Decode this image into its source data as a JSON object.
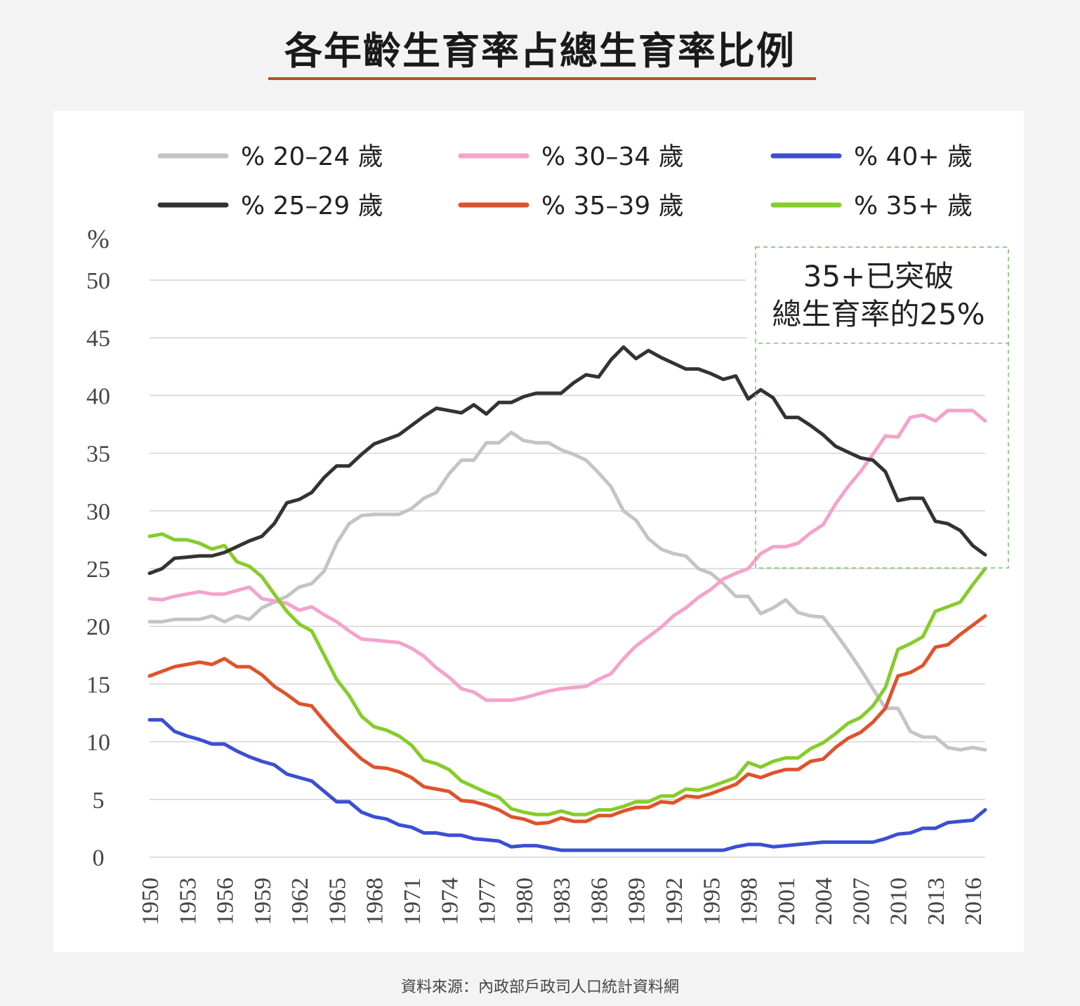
{
  "title": "各年齡生育率占總生育率比例",
  "source": "資料來源：內政部戶政司人口統計資料網",
  "annotation": {
    "line1": "35+已突破",
    "line2": "總生育率的25%"
  },
  "chart_data": {
    "type": "line",
    "title": "各年齡生育率占總生育率比例",
    "ylabel": "%",
    "ylim": [
      0,
      50
    ],
    "yticks": [
      0,
      5,
      10,
      15,
      20,
      25,
      30,
      35,
      40,
      45,
      50
    ],
    "xtick_labels": [
      "1950",
      "1953",
      "1956",
      "1959",
      "1962",
      "1965",
      "1968",
      "1971",
      "1974",
      "1977",
      "1980",
      "1983",
      "1986",
      "1989",
      "1992",
      "1995",
      "1998",
      "2001",
      "2004",
      "2007",
      "2010",
      "2013",
      "2016"
    ],
    "x": [
      1950,
      1951,
      1952,
      1953,
      1954,
      1955,
      1956,
      1957,
      1958,
      1959,
      1960,
      1961,
      1962,
      1963,
      1964,
      1965,
      1966,
      1967,
      1968,
      1969,
      1970,
      1971,
      1972,
      1973,
      1974,
      1975,
      1976,
      1977,
      1978,
      1979,
      1980,
      1981,
      1982,
      1983,
      1984,
      1985,
      1986,
      1987,
      1988,
      1989,
      1990,
      1991,
      1992,
      1993,
      1994,
      1995,
      1996,
      1997,
      1998,
      1999,
      2000,
      2001,
      2002,
      2003,
      2004,
      2005,
      2006,
      2007,
      2008,
      2009,
      2010,
      2011,
      2012,
      2013,
      2014,
      2015,
      2016,
      2017
    ],
    "grid": true,
    "legend_position": "top",
    "series": [
      {
        "name": "% 20–24 歲",
        "color": "#c4c4c4",
        "values": [
          20.4,
          20.4,
          20.6,
          20.6,
          20.6,
          20.9,
          20.4,
          20.9,
          20.6,
          21.6,
          22.1,
          22.6,
          23.4,
          23.7,
          24.8,
          27.2,
          28.9,
          29.6,
          29.7,
          29.7,
          29.7,
          30.2,
          31.1,
          31.6,
          33.2,
          34.4,
          34.4,
          35.9,
          35.9,
          36.8,
          36.1,
          35.9,
          35.9,
          35.3,
          34.9,
          34.4,
          33.3,
          32.1,
          30.0,
          29.2,
          27.6,
          26.7,
          26.3,
          26.1,
          25.0,
          24.6,
          23.7,
          22.6,
          22.6,
          21.1,
          21.6,
          22.3,
          21.2,
          20.9,
          20.8,
          19.4,
          17.9,
          16.3,
          14.6,
          12.9,
          12.9,
          10.9,
          10.4,
          10.4,
          9.5,
          9.3,
          9.5,
          9.3
        ]
      },
      {
        "name": "% 25–29 歲",
        "color": "#333333",
        "values": [
          24.6,
          25.0,
          25.9,
          26.0,
          26.1,
          26.1,
          26.4,
          26.9,
          27.4,
          27.8,
          28.9,
          30.7,
          31.0,
          31.6,
          32.9,
          33.9,
          33.9,
          34.9,
          35.8,
          36.2,
          36.6,
          37.4,
          38.2,
          38.9,
          38.7,
          38.5,
          39.2,
          38.4,
          39.4,
          39.4,
          39.9,
          40.2,
          40.2,
          40.2,
          41.1,
          41.8,
          41.6,
          43.1,
          44.2,
          43.2,
          43.9,
          43.3,
          42.8,
          42.3,
          42.3,
          41.9,
          41.4,
          41.7,
          39.7,
          40.5,
          39.8,
          38.1,
          38.1,
          37.4,
          36.6,
          35.6,
          35.1,
          34.6,
          34.4,
          33.4,
          30.9,
          31.1,
          31.1,
          29.1,
          28.9,
          28.3,
          27.0,
          26.2
        ]
      },
      {
        "name": "% 30–34 歲",
        "color": "#f4a3cd",
        "values": [
          22.4,
          22.3,
          22.6,
          22.8,
          23.0,
          22.8,
          22.8,
          23.1,
          23.4,
          22.4,
          22.2,
          22.0,
          21.4,
          21.7,
          21.0,
          20.4,
          19.6,
          18.9,
          18.8,
          18.7,
          18.6,
          18.1,
          17.4,
          16.4,
          15.6,
          14.6,
          14.3,
          13.6,
          13.6,
          13.6,
          13.8,
          14.1,
          14.4,
          14.6,
          14.7,
          14.8,
          15.4,
          15.9,
          17.2,
          18.3,
          19.1,
          19.9,
          20.9,
          21.6,
          22.5,
          23.2,
          24.1,
          24.6,
          25.0,
          26.3,
          26.9,
          26.9,
          27.2,
          28.1,
          28.8,
          30.6,
          32.1,
          33.4,
          34.9,
          36.5,
          36.4,
          38.1,
          38.3,
          37.8,
          38.7,
          38.7,
          38.7,
          37.8
        ]
      },
      {
        "name": "% 35–39 歲",
        "color": "#e0522b",
        "values": [
          15.7,
          16.1,
          16.5,
          16.7,
          16.9,
          16.7,
          17.2,
          16.5,
          16.5,
          15.8,
          14.8,
          14.1,
          13.3,
          13.1,
          11.8,
          10.6,
          9.5,
          8.5,
          7.8,
          7.7,
          7.4,
          6.9,
          6.1,
          5.9,
          5.7,
          4.9,
          4.8,
          4.5,
          4.1,
          3.5,
          3.3,
          2.9,
          3.0,
          3.4,
          3.1,
          3.1,
          3.6,
          3.6,
          4.0,
          4.3,
          4.3,
          4.8,
          4.7,
          5.3,
          5.2,
          5.5,
          5.9,
          6.3,
          7.2,
          6.9,
          7.3,
          7.6,
          7.6,
          8.3,
          8.5,
          9.5,
          10.3,
          10.8,
          11.7,
          12.9,
          15.7,
          16.0,
          16.6,
          18.2,
          18.4,
          19.3,
          20.1,
          20.9
        ]
      },
      {
        "name": "% 40+ 歲",
        "color": "#3b4fd3",
        "values": [
          11.9,
          11.9,
          10.9,
          10.5,
          10.2,
          9.8,
          9.8,
          9.2,
          8.7,
          8.3,
          8.0,
          7.2,
          6.9,
          6.6,
          5.7,
          4.8,
          4.8,
          3.9,
          3.5,
          3.3,
          2.8,
          2.6,
          2.1,
          2.1,
          1.9,
          1.9,
          1.6,
          1.5,
          1.4,
          0.9,
          1.0,
          1.0,
          0.8,
          0.6,
          0.6,
          0.6,
          0.6,
          0.6,
          0.6,
          0.6,
          0.6,
          0.6,
          0.6,
          0.6,
          0.6,
          0.6,
          0.6,
          0.9,
          1.1,
          1.1,
          0.9,
          1.0,
          1.1,
          1.2,
          1.3,
          1.3,
          1.3,
          1.3,
          1.3,
          1.6,
          2.0,
          2.1,
          2.5,
          2.5,
          3.0,
          3.1,
          3.2,
          4.1
        ]
      },
      {
        "name": "% 35+ 歲",
        "color": "#86cc2a",
        "values": [
          27.8,
          28.0,
          27.5,
          27.5,
          27.2,
          26.7,
          27.0,
          25.6,
          25.2,
          24.3,
          22.8,
          21.3,
          20.2,
          19.6,
          17.5,
          15.4,
          14.0,
          12.2,
          11.3,
          11.0,
          10.5,
          9.7,
          8.4,
          8.1,
          7.6,
          6.6,
          6.1,
          5.6,
          5.2,
          4.2,
          3.9,
          3.7,
          3.7,
          4.0,
          3.7,
          3.7,
          4.1,
          4.1,
          4.4,
          4.8,
          4.8,
          5.3,
          5.3,
          5.9,
          5.8,
          6.1,
          6.5,
          6.9,
          8.2,
          7.8,
          8.3,
          8.6,
          8.6,
          9.4,
          9.9,
          10.7,
          11.6,
          12.1,
          13.1,
          14.7,
          18.0,
          18.5,
          19.1,
          21.3,
          21.7,
          22.1,
          23.6,
          25.0
        ]
      }
    ]
  }
}
